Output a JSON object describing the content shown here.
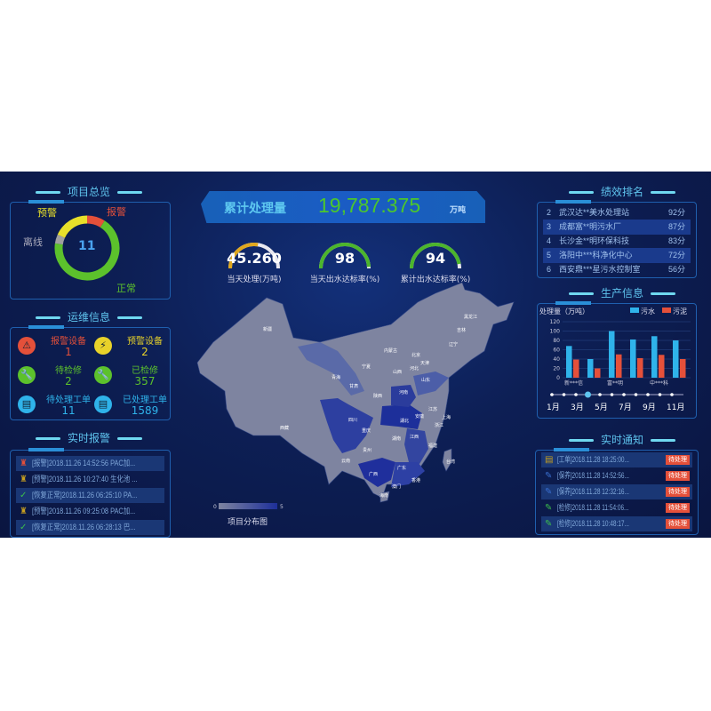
{
  "colors": {
    "alarm": "#e4503a",
    "warning": "#e8e02a",
    "normal": "#5cc12c",
    "offline": "#a0a0a0",
    "accent": "#5fc4ee",
    "sewage": "#2fb3ea",
    "sludge": "#e4503a"
  },
  "overview": {
    "title": "项目总览",
    "total": "11",
    "labels": {
      "alarm": "报警",
      "warning": "预警",
      "offline": "离线",
      "normal": "正常"
    },
    "slices": [
      {
        "name": "报警",
        "value": 1
      },
      {
        "name": "正常",
        "value": 7.5
      },
      {
        "name": "离线",
        "value": 0.5
      },
      {
        "name": "预警",
        "value": 2
      }
    ]
  },
  "ops": {
    "title": "运维信息",
    "items": [
      {
        "label": "报警设备",
        "value": "1",
        "icon": "alarm-icon",
        "color": "#e4503a"
      },
      {
        "label": "预警设备",
        "value": "2",
        "icon": "warning-icon",
        "color": "#e8d22a"
      },
      {
        "label": "待检修",
        "value": "2",
        "icon": "wrench-icon",
        "color": "#5cc12c"
      },
      {
        "label": "已检修",
        "value": "357",
        "icon": "wrench-icon",
        "color": "#5cc12c"
      },
      {
        "label": "待处理工单",
        "value": "11",
        "icon": "document-icon",
        "color": "#2fb3ea"
      },
      {
        "label": "已处理工单",
        "value": "1589",
        "icon": "document-icon",
        "color": "#2fb3ea"
      }
    ]
  },
  "alarms": {
    "title": "实时报警",
    "items": [
      {
        "text": "[报警]2018.11.26 14:52:56 PAC加...",
        "icon": "alarm-icon"
      },
      {
        "text": "[预警]2018.11.26 10:27:40 生化池 ...",
        "icon": "warning-icon"
      },
      {
        "text": "[恢复正常]2018.11.26 06:25:10 PA...",
        "icon": "check-icon"
      },
      {
        "text": "[预警]2018.11.26 09:25:08 PAC加...",
        "icon": "warning-icon"
      },
      {
        "text": "[恢复正常]2018.11.26 06:28:13 巴...",
        "icon": "check-icon"
      }
    ]
  },
  "header": {
    "label": "累计处理量",
    "value": "19,787.375",
    "unit": "万吨"
  },
  "gauges": [
    {
      "value": "45.260",
      "label": "当天处理(万吨)",
      "fraction": 0.55,
      "color": "#e0a81e"
    },
    {
      "value": "98",
      "label": "当天出水达标率(%)",
      "fraction": 0.98,
      "color": "#4cb52c"
    },
    {
      "value": "94",
      "label": "累计出水达标率(%)",
      "fraction": 0.94,
      "color": "#4cb52c"
    }
  ],
  "map": {
    "title": "项目分布图",
    "legend_min": "0",
    "legend_max": "5",
    "provinces": [
      "新疆",
      "西藏",
      "青海",
      "甘肃",
      "内蒙古",
      "宁夏",
      "山西",
      "河北",
      "陕西",
      "河南",
      "山东",
      "四川",
      "重庆",
      "湖北",
      "湖南",
      "江西",
      "安徽",
      "江苏",
      "上海",
      "浙江",
      "福建",
      "台湾",
      "贵州",
      "云南",
      "广西",
      "广东",
      "海南",
      "黑龙江",
      "吉林",
      "辽宁",
      "北京",
      "天津",
      "香港",
      "澳门"
    ]
  },
  "ranking": {
    "title": "绩效排名",
    "items": [
      {
        "rank": "2",
        "name": "武汉达**美水处理站",
        "score": "92分"
      },
      {
        "rank": "3",
        "name": "成都富**明污水厂",
        "score": "87分"
      },
      {
        "rank": "4",
        "name": "长沙金**明环保科技",
        "score": "83分"
      },
      {
        "rank": "5",
        "name": "洛阳中***科净化中心",
        "score": "72分"
      },
      {
        "rank": "6",
        "name": "西安鼎***星污水控制室",
        "score": "56分"
      }
    ]
  },
  "production": {
    "title": "生产信息",
    "timeline": [
      "1月",
      "3月",
      "5月",
      "7月",
      "9月",
      "11月"
    ],
    "timeline_selected": "4月"
  },
  "chart_data": {
    "type": "bar",
    "ylabel": "处理量（万吨）",
    "ylim": [
      0,
      120
    ],
    "yticks": [
      0,
      20,
      40,
      60,
      80,
      100,
      120
    ],
    "categories": [
      "新***信",
      "",
      "富**明",
      "",
      "中***科",
      ""
    ],
    "series": [
      {
        "name": "污水",
        "values": [
          68,
          40,
          100,
          82,
          89,
          80
        ]
      },
      {
        "name": "污泥",
        "values": [
          39,
          20,
          50,
          42,
          49,
          40
        ]
      }
    ],
    "legend": "top-right",
    "grid": true
  },
  "notices": {
    "title": "实时通知",
    "badge": "待处理",
    "items": [
      {
        "text": "[工单]2018.11.28 18:25:00...",
        "icon": "clipboard-icon"
      },
      {
        "text": "[保养]2018.11.28 14:52:56...",
        "icon": "maintenance-icon"
      },
      {
        "text": "[保养]2018.11.28 12:32:16...",
        "icon": "maintenance-icon"
      },
      {
        "text": "[检修]2018.11.28 11:54:06...",
        "icon": "repair-icon"
      },
      {
        "text": "[检修]2018.11.28 10:48:17...",
        "icon": "repair-icon"
      }
    ]
  }
}
